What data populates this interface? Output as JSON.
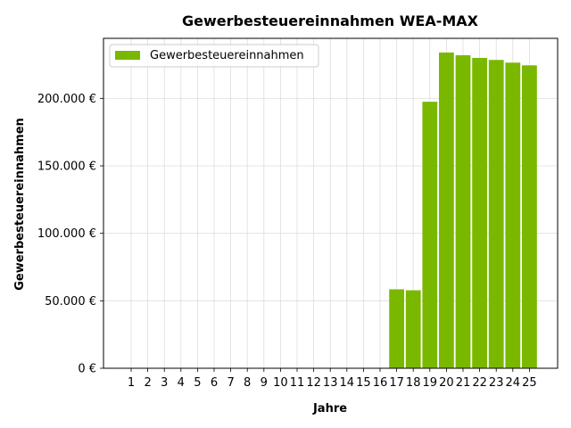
{
  "chart_data": {
    "type": "bar",
    "title": "Gewerbesteuereinnahmen WEA-MAX",
    "xlabel": "Jahre",
    "ylabel": "Gewerbesteuereinnahmen",
    "categories": [
      "1",
      "2",
      "3",
      "4",
      "5",
      "6",
      "7",
      "8",
      "9",
      "10",
      "11",
      "12",
      "13",
      "14",
      "15",
      "16",
      "17",
      "18",
      "19",
      "20",
      "21",
      "22",
      "23",
      "24",
      "25"
    ],
    "series": [
      {
        "name": "Gewerbesteuereinnahmen",
        "color": "#7ab800",
        "values": [
          0,
          0,
          0,
          0,
          0,
          0,
          0,
          0,
          0,
          0,
          0,
          0,
          0,
          0,
          0,
          0,
          58500,
          57800,
          197500,
          234000,
          232000,
          230000,
          228500,
          226500,
          224500
        ]
      }
    ],
    "ylim": [
      0,
      244500
    ],
    "yticks": [
      {
        "value": 0,
        "label": "0 €"
      },
      {
        "value": 50000,
        "label": "50.000 €"
      },
      {
        "value": 100000,
        "label": "100.000 €"
      },
      {
        "value": 150000,
        "label": "150.000 €"
      },
      {
        "value": 200000,
        "label": "200.000 €"
      }
    ],
    "grid": true,
    "legend_position": "top-left"
  }
}
